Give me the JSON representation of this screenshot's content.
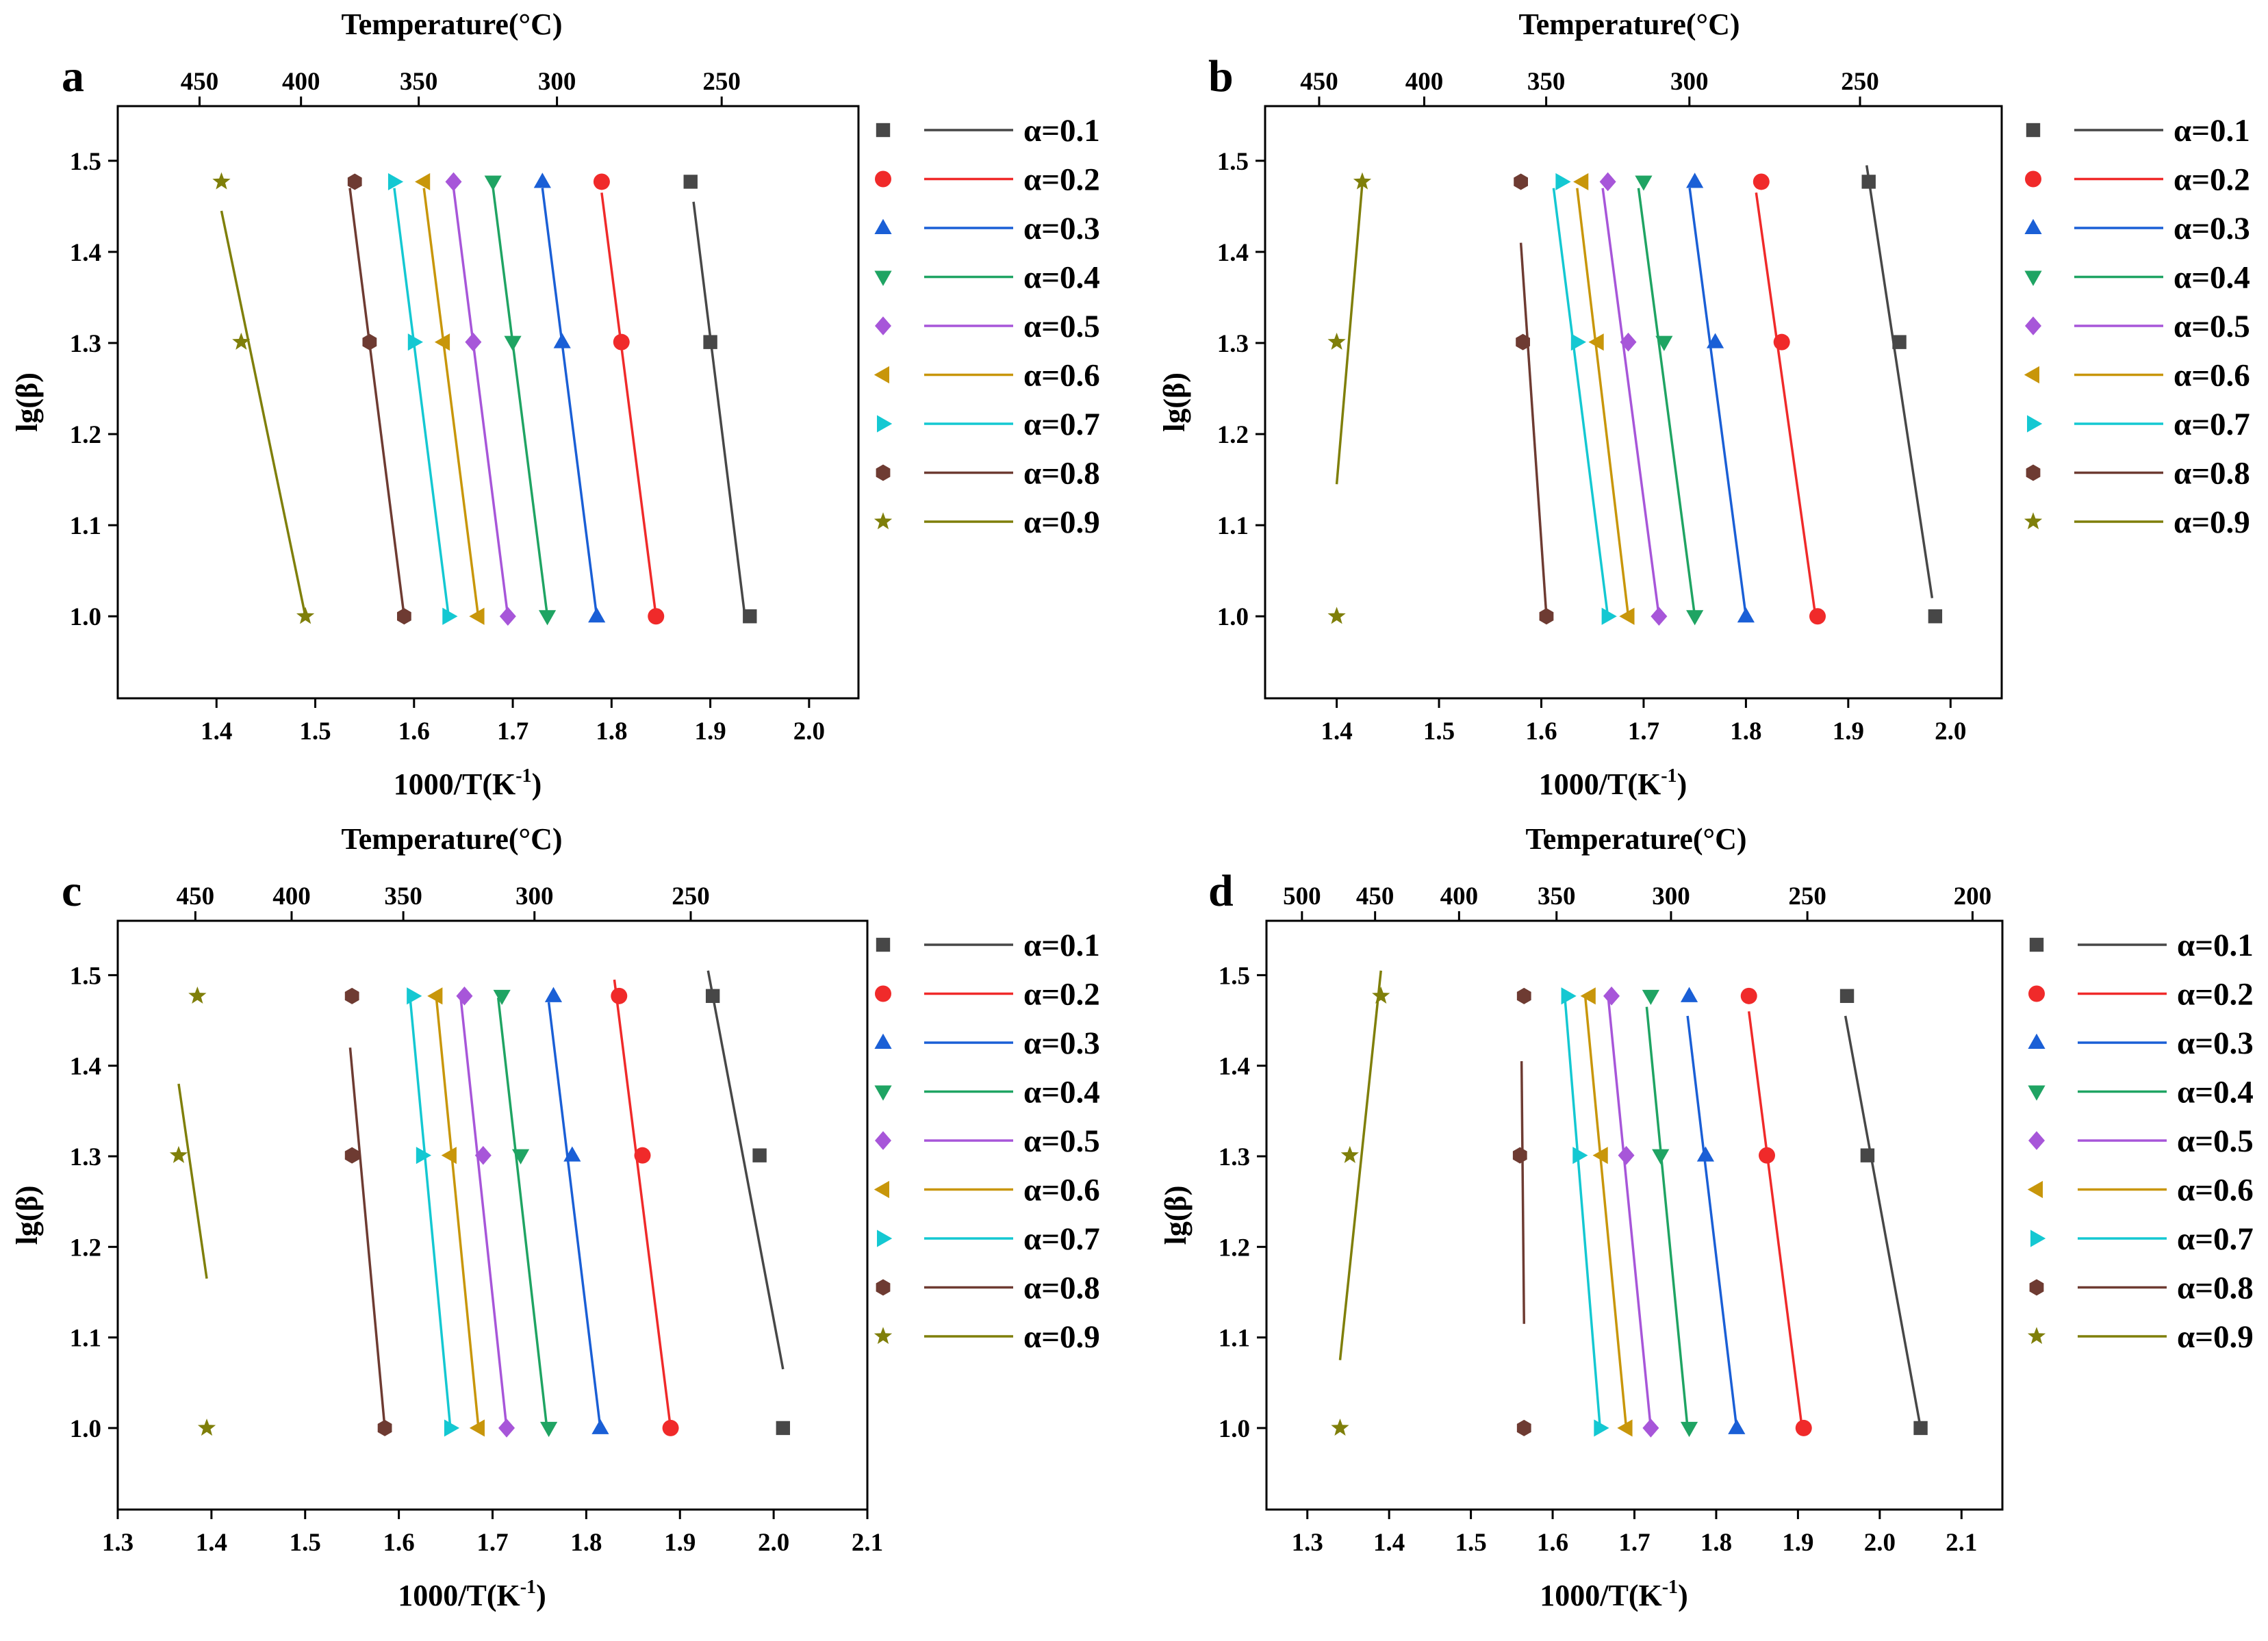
{
  "figure": {
    "top_axis_label": "Temperature(°C)",
    "x_axis_label_main": "1000/T(K",
    "x_axis_label_sup": "-1",
    "x_axis_label_end": ")",
    "y_axis_label": "lg(β)"
  },
  "legend": {
    "items": [
      {
        "label": "α=0.1",
        "color": "#474747",
        "marker": "square"
      },
      {
        "label": "α=0.2",
        "color": "#f02a2a",
        "marker": "circle"
      },
      {
        "label": "α=0.3",
        "color": "#1a5fd6",
        "marker": "triangle-up"
      },
      {
        "label": "α=0.4",
        "color": "#1fa463",
        "marker": "triangle-down"
      },
      {
        "label": "α=0.5",
        "color": "#a756d9",
        "marker": "diamond"
      },
      {
        "label": "α=0.6",
        "color": "#c8960a",
        "marker": "triangle-left"
      },
      {
        "label": "α=0.7",
        "color": "#14c8d2",
        "marker": "triangle-right"
      },
      {
        "label": "α=0.8",
        "color": "#6e3b32",
        "marker": "hexagon"
      },
      {
        "label": "α=0.9",
        "color": "#7f7f0a",
        "marker": "star"
      }
    ]
  },
  "chart_data": [
    {
      "type": "scatter",
      "panel": "a",
      "xlabel": "1000/T(K-1)",
      "ylabel": "lg(β)",
      "top_xlabel": "Temperature(°C)",
      "xlim": [
        1.3,
        2.05
      ],
      "ylim": [
        0.91,
        1.56
      ],
      "xticks": [
        1.4,
        1.5,
        1.6,
        1.7,
        1.8,
        1.9,
        2.0
      ],
      "yticks": [
        1.0,
        1.1,
        1.2,
        1.3,
        1.4,
        1.5
      ],
      "top_ticks": [
        450,
        400,
        350,
        300,
        250
      ],
      "y_values": [
        1.477,
        1.301,
        1.0
      ],
      "series": [
        {
          "name": "α=0.1",
          "x": [
            1.88,
            1.9,
            1.94
          ],
          "fit": [
            [
              1.935,
              1.0
            ],
            [
              1.883,
              1.455
            ]
          ]
        },
        {
          "name": "α=0.2",
          "x": [
            1.79,
            1.81,
            1.845
          ],
          "fit": [
            [
              1.845,
              1.0
            ],
            [
              1.79,
              1.465
            ]
          ]
        },
        {
          "name": "α=0.3",
          "x": [
            1.73,
            1.75,
            1.785
          ],
          "fit": [
            [
              1.785,
              1.0
            ],
            [
              1.73,
              1.47
            ]
          ]
        },
        {
          "name": "α=0.4",
          "x": [
            1.68,
            1.7,
            1.735
          ],
          "fit": [
            [
              1.735,
              1.0
            ],
            [
              1.68,
              1.47
            ]
          ]
        },
        {
          "name": "α=0.5",
          "x": [
            1.64,
            1.66,
            1.695
          ],
          "fit": [
            [
              1.695,
              1.0
            ],
            [
              1.64,
              1.47
            ]
          ]
        },
        {
          "name": "α=0.6",
          "x": [
            1.61,
            1.63,
            1.665
          ],
          "fit": [
            [
              1.665,
              1.0
            ],
            [
              1.61,
              1.47
            ]
          ]
        },
        {
          "name": "α=0.7",
          "x": [
            1.58,
            1.6,
            1.635
          ],
          "fit": [
            [
              1.635,
              1.0
            ],
            [
              1.58,
              1.47
            ]
          ]
        },
        {
          "name": "α=0.8",
          "x": [
            1.54,
            1.555,
            1.59
          ],
          "fit": [
            [
              1.59,
              1.0
            ],
            [
              1.535,
              1.47
            ]
          ]
        },
        {
          "name": "α=0.9",
          "x": [
            1.405,
            1.425,
            1.49
          ],
          "fit": [
            [
              1.49,
              1.0
            ],
            [
              1.405,
              1.445
            ]
          ]
        }
      ]
    },
    {
      "type": "scatter",
      "panel": "b",
      "xlabel": "1000/T(K-1)",
      "ylabel": "lg(β)",
      "top_xlabel": "Temperature(°C)",
      "xlim": [
        1.33,
        2.05
      ],
      "ylim": [
        0.91,
        1.56
      ],
      "xticks": [
        1.4,
        1.5,
        1.6,
        1.7,
        1.8,
        1.9,
        2.0
      ],
      "yticks": [
        1.0,
        1.1,
        1.2,
        1.3,
        1.4,
        1.5
      ],
      "top_ticks": [
        450,
        400,
        350,
        300,
        250
      ],
      "y_values": [
        1.477,
        1.301,
        1.0
      ],
      "series": [
        {
          "name": "α=0.1",
          "x": [
            1.92,
            1.95,
            1.985
          ],
          "fit": [
            [
              1.982,
              1.02
            ],
            [
              1.918,
              1.495
            ]
          ]
        },
        {
          "name": "α=0.2",
          "x": [
            1.815,
            1.835,
            1.87
          ],
          "fit": [
            [
              1.868,
              1.0
            ],
            [
              1.81,
              1.465
            ]
          ]
        },
        {
          "name": "α=0.3",
          "x": [
            1.75,
            1.77,
            1.8
          ],
          "fit": [
            [
              1.8,
              1.0
            ],
            [
              1.745,
              1.47
            ]
          ]
        },
        {
          "name": "α=0.4",
          "x": [
            1.7,
            1.72,
            1.75
          ],
          "fit": [
            [
              1.75,
              1.0
            ],
            [
              1.695,
              1.47
            ]
          ]
        },
        {
          "name": "α=0.5",
          "x": [
            1.665,
            1.685,
            1.715
          ],
          "fit": [
            [
              1.715,
              1.0
            ],
            [
              1.66,
              1.47
            ]
          ]
        },
        {
          "name": "α=0.6",
          "x": [
            1.64,
            1.655,
            1.685
          ],
          "fit": [
            [
              1.685,
              1.0
            ],
            [
              1.635,
              1.47
            ]
          ]
        },
        {
          "name": "α=0.7",
          "x": [
            1.62,
            1.635,
            1.665
          ],
          "fit": [
            [
              1.665,
              1.0
            ],
            [
              1.612,
              1.47
            ]
          ]
        },
        {
          "name": "α=0.8",
          "x": [
            1.58,
            1.582,
            1.605
          ],
          "fit": [
            [
              1.605,
              1.0
            ],
            [
              1.58,
              1.41
            ]
          ]
        },
        {
          "name": "α=0.9",
          "x": [
            1.425,
            1.4,
            1.4
          ],
          "fit": [
            [
              1.4,
              1.145
            ],
            [
              1.425,
              1.475
            ]
          ]
        }
      ]
    },
    {
      "type": "scatter",
      "panel": "c",
      "xlabel": "1000/T(K-1)",
      "ylabel": "lg(β)",
      "top_xlabel": "Temperature(°C)",
      "xlim": [
        1.3,
        2.1
      ],
      "ylim": [
        0.91,
        1.56
      ],
      "xticks": [
        1.3,
        1.4,
        1.5,
        1.6,
        1.7,
        1.8,
        1.9,
        2.0,
        2.1
      ],
      "yticks": [
        1.0,
        1.1,
        1.2,
        1.3,
        1.4,
        1.5
      ],
      "top_ticks": [
        450,
        400,
        350,
        300,
        250
      ],
      "y_values": [
        1.477,
        1.301,
        1.0
      ],
      "series": [
        {
          "name": "α=0.1",
          "x": [
            1.935,
            1.985,
            2.01
          ],
          "fit": [
            [
              2.01,
              1.065
            ],
            [
              1.93,
              1.505
            ]
          ]
        },
        {
          "name": "α=0.2",
          "x": [
            1.835,
            1.86,
            1.89
          ],
          "fit": [
            [
              1.89,
              1.0
            ],
            [
              1.83,
              1.495
            ]
          ]
        },
        {
          "name": "α=0.3",
          "x": [
            1.765,
            1.785,
            1.815
          ],
          "fit": [
            [
              1.815,
              1.0
            ],
            [
              1.76,
              1.47
            ]
          ]
        },
        {
          "name": "α=0.4",
          "x": [
            1.71,
            1.73,
            1.76
          ],
          "fit": [
            [
              1.758,
              1.0
            ],
            [
              1.706,
              1.475
            ]
          ]
        },
        {
          "name": "α=0.5",
          "x": [
            1.67,
            1.69,
            1.715
          ],
          "fit": [
            [
              1.715,
              1.0
            ],
            [
              1.666,
              1.475
            ]
          ]
        },
        {
          "name": "α=0.6",
          "x": [
            1.64,
            1.655,
            1.685
          ],
          "fit": [
            [
              1.685,
              1.0
            ],
            [
              1.64,
              1.475
            ]
          ]
        },
        {
          "name": "α=0.7",
          "x": [
            1.615,
            1.625,
            1.655
          ],
          "fit": [
            [
              1.655,
              1.0
            ],
            [
              1.612,
              1.475
            ]
          ]
        },
        {
          "name": "α=0.8",
          "x": [
            1.55,
            1.55,
            1.585
          ],
          "fit": [
            [
              1.585,
              1.0
            ],
            [
              1.548,
              1.42
            ]
          ]
        },
        {
          "name": "α=0.9",
          "x": [
            1.385,
            1.365,
            1.395
          ],
          "fit": [
            [
              1.395,
              1.165
            ],
            [
              1.365,
              1.38
            ]
          ]
        }
      ]
    },
    {
      "type": "scatter",
      "panel": "d",
      "xlabel": "1000/T(K-1)",
      "ylabel": "lg(β)",
      "top_xlabel": "Temperature(°C)",
      "xlim": [
        1.25,
        2.15
      ],
      "ylim": [
        0.91,
        1.56
      ],
      "xticks": [
        1.3,
        1.4,
        1.5,
        1.6,
        1.7,
        1.8,
        1.9,
        2.0,
        2.1
      ],
      "yticks": [
        1.0,
        1.1,
        1.2,
        1.3,
        1.4,
        1.5
      ],
      "top_ticks": [
        500,
        450,
        400,
        350,
        300,
        250,
        200
      ],
      "y_values": [
        1.477,
        1.301,
        1.0
      ],
      "series": [
        {
          "name": "α=0.1",
          "x": [
            1.96,
            1.985,
            2.05
          ],
          "fit": [
            [
              2.05,
              1.0
            ],
            [
              1.958,
              1.455
            ]
          ]
        },
        {
          "name": "α=0.2",
          "x": [
            1.84,
            1.862,
            1.907
          ],
          "fit": [
            [
              1.905,
              1.0
            ],
            [
              1.84,
              1.46
            ]
          ]
        },
        {
          "name": "α=0.3",
          "x": [
            1.767,
            1.787,
            1.825
          ],
          "fit": [
            [
              1.825,
              1.0
            ],
            [
              1.765,
              1.455
            ]
          ]
        },
        {
          "name": "α=0.4",
          "x": [
            1.72,
            1.732,
            1.767
          ],
          "fit": [
            [
              1.765,
              1.0
            ],
            [
              1.715,
              1.465
            ]
          ]
        },
        {
          "name": "α=0.5",
          "x": [
            1.672,
            1.69,
            1.72
          ],
          "fit": [
            [
              1.72,
              1.0
            ],
            [
              1.668,
              1.475
            ]
          ]
        },
        {
          "name": "α=0.6",
          "x": [
            1.645,
            1.66,
            1.69
          ],
          "fit": [
            [
              1.69,
              1.0
            ],
            [
              1.64,
              1.475
            ]
          ]
        },
        {
          "name": "α=0.7",
          "x": [
            1.618,
            1.632,
            1.658
          ],
          "fit": [
            [
              1.658,
              1.0
            ],
            [
              1.615,
              1.475
            ]
          ]
        },
        {
          "name": "α=0.8",
          "x": [
            1.565,
            1.56,
            1.565
          ],
          "fit": [
            [
              1.565,
              1.115
            ],
            [
              1.562,
              1.405
            ]
          ]
        },
        {
          "name": "α=0.9",
          "x": [
            1.39,
            1.352,
            1.34
          ],
          "fit": [
            [
              1.34,
              1.075
            ],
            [
              1.39,
              1.505
            ]
          ]
        }
      ]
    }
  ]
}
